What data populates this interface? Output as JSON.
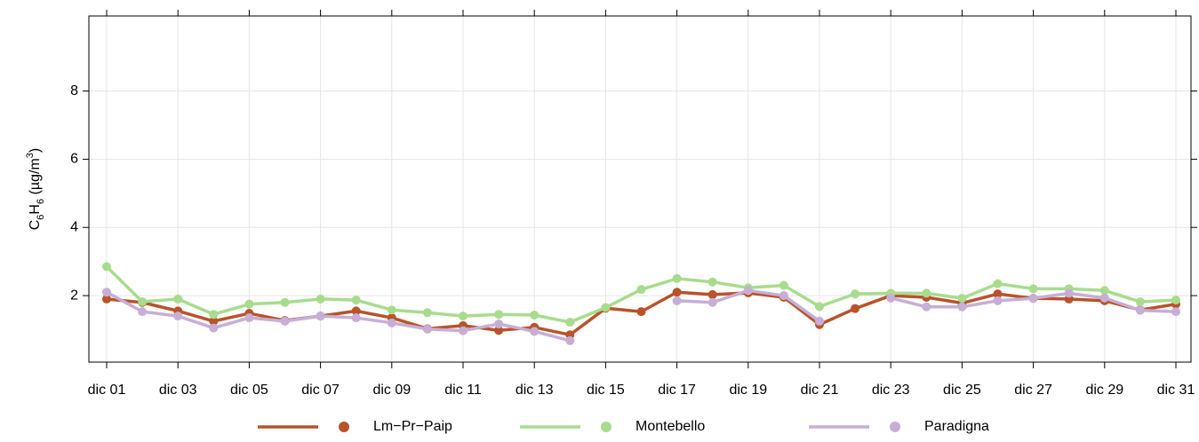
{
  "chart_data": {
    "type": "line",
    "y_label": [
      "C",
      "6",
      "H",
      "6",
      " (µg/m",
      "3",
      ")"
    ],
    "categories": [
      "dic 01",
      null,
      "dic 03",
      null,
      "dic 05",
      null,
      "dic 07",
      null,
      "dic 09",
      null,
      "dic 11",
      null,
      "dic 13",
      null,
      "dic 15",
      null,
      "dic 17",
      null,
      "dic 19",
      null,
      "dic 21",
      null,
      "dic 23",
      null,
      "dic 25",
      null,
      "dic 27",
      null,
      "dic 29",
      null,
      "dic 31"
    ],
    "series": [
      {
        "name": "Lm−Pr−Paip",
        "color": "#b8532a",
        "values": [
          1.9,
          1.8,
          1.55,
          1.25,
          1.48,
          1.27,
          1.4,
          1.55,
          1.35,
          1.03,
          1.12,
          0.98,
          1.07,
          0.85,
          1.63,
          1.53,
          2.1,
          2.03,
          2.08,
          1.95,
          1.15,
          1.62,
          2.0,
          1.95,
          1.78,
          2.05,
          1.92,
          1.9,
          1.85,
          1.58,
          1.75
        ]
      },
      {
        "name": "Montebello",
        "color": "#a8dc8d",
        "values": [
          2.85,
          1.82,
          1.9,
          1.45,
          1.75,
          1.8,
          1.9,
          1.87,
          1.58,
          1.5,
          1.4,
          1.45,
          1.43,
          1.22,
          1.65,
          2.18,
          2.5,
          2.4,
          2.23,
          2.3,
          1.68,
          2.05,
          2.07,
          2.07,
          1.92,
          2.35,
          2.2,
          2.2,
          2.15,
          1.82,
          1.87
        ]
      },
      {
        "name": "Paradigna",
        "color": "#c7aed6",
        "values": [
          2.1,
          1.53,
          1.4,
          1.05,
          1.35,
          1.25,
          1.4,
          1.35,
          1.2,
          1.02,
          0.97,
          1.17,
          0.95,
          0.68,
          null,
          null,
          1.85,
          1.8,
          2.15,
          2.0,
          1.25,
          null,
          1.93,
          1.67,
          1.67,
          1.85,
          1.92,
          2.07,
          1.93,
          1.57,
          1.53
        ]
      }
    ],
    "ylim": [
      0.05,
      10.2
    ],
    "yticks": [
      2,
      4,
      6,
      8
    ],
    "grid": true
  }
}
